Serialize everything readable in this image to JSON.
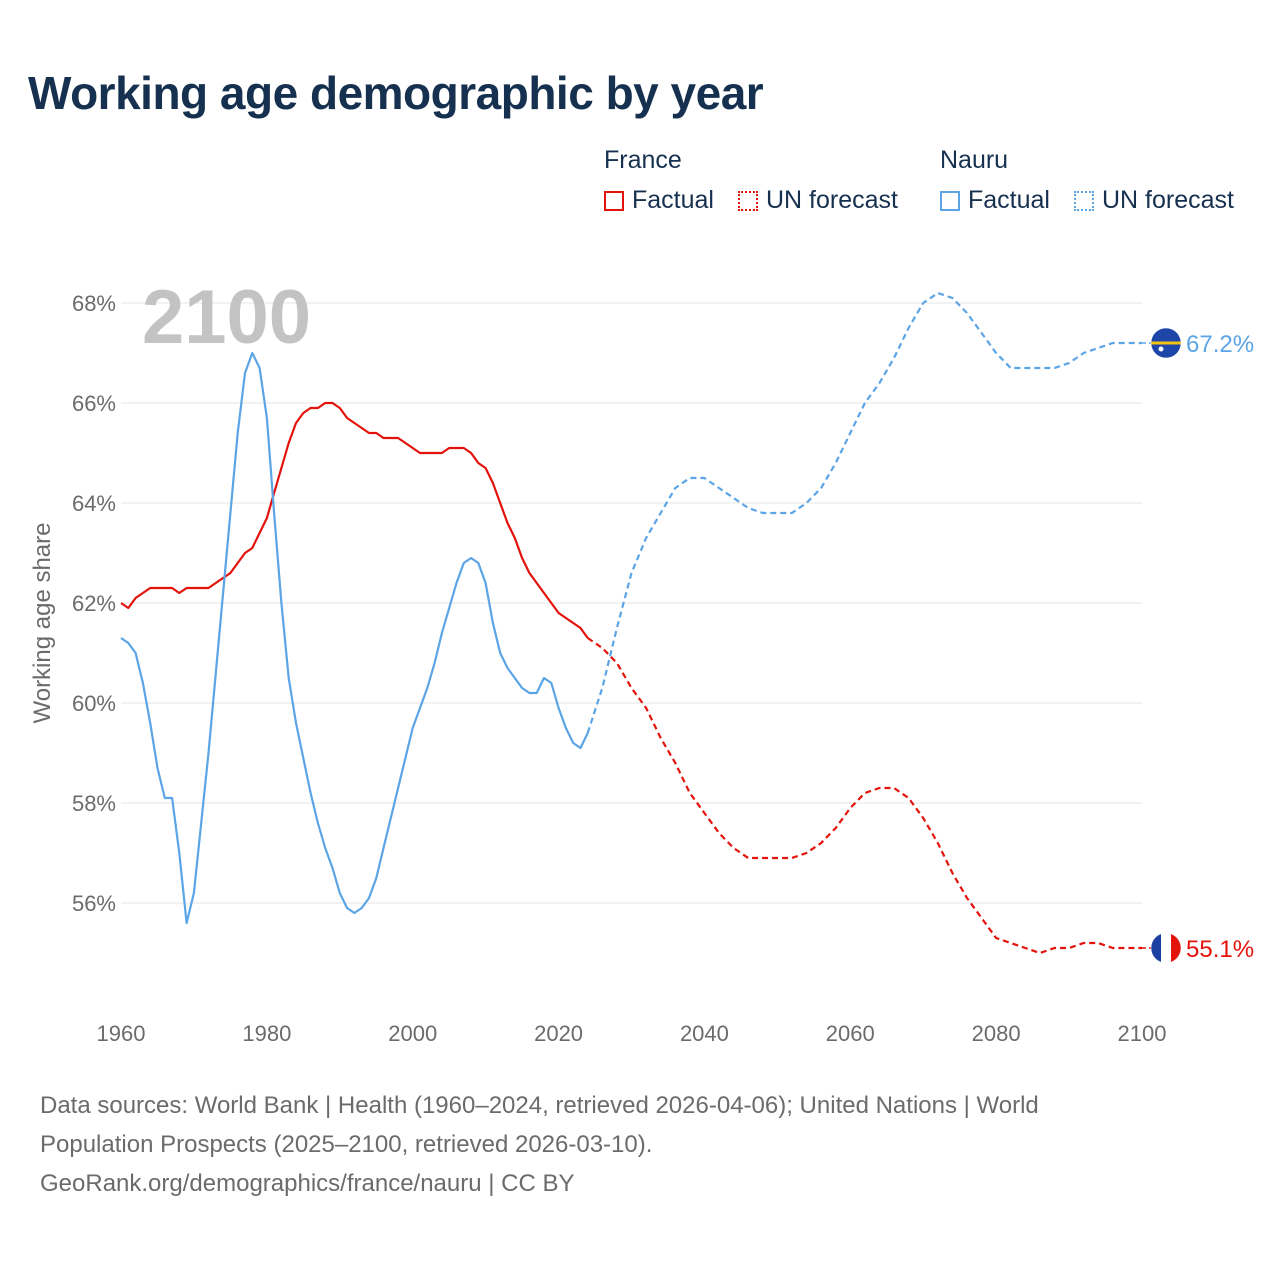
{
  "title": "Working age demographic by year",
  "legend": {
    "groups": [
      {
        "name": "France",
        "factual_label": "Factual",
        "forecast_label": "UN forecast",
        "color": "#e3120b"
      },
      {
        "name": "Nauru",
        "factual_label": "Factual",
        "forecast_label": "UN forecast",
        "color": "#5ba4e6"
      }
    ]
  },
  "footer": {
    "line1": "Data sources: World Bank | Health (1960–2024, retrieved 2026-04-06); United Nations | World",
    "line2": "Population Prospects (2025–2100, retrieved 2026-03-10).",
    "line3": "GeoRank.org/demographics/france/nauru | CC BY"
  },
  "chart_data": {
    "type": "line",
    "title": "Working age demographic by year",
    "ylabel": "Working age share",
    "xlabel": "",
    "year_display": "2100",
    "xlim": [
      1960,
      2100
    ],
    "ylim": [
      54,
      69
    ],
    "x_ticks": [
      1960,
      1980,
      2000,
      2020,
      2040,
      2060,
      2080,
      2100
    ],
    "y_ticks": [
      56,
      58,
      60,
      62,
      64,
      66,
      68
    ],
    "y_tick_labels": [
      "56%",
      "58%",
      "60%",
      "62%",
      "64%",
      "66%",
      "68%"
    ],
    "grid": true,
    "series": [
      {
        "name": "France",
        "color": "#e3120b",
        "end_label": "55.1%",
        "factual": {
          "x": [
            1960,
            1961,
            1962,
            1963,
            1964,
            1965,
            1966,
            1967,
            1968,
            1969,
            1970,
            1971,
            1972,
            1973,
            1974,
            1975,
            1976,
            1977,
            1978,
            1979,
            1980,
            1981,
            1982,
            1983,
            1984,
            1985,
            1986,
            1987,
            1988,
            1989,
            1990,
            1991,
            1992,
            1993,
            1994,
            1995,
            1996,
            1997,
            1998,
            1999,
            2000,
            2001,
            2002,
            2003,
            2004,
            2005,
            2006,
            2007,
            2008,
            2009,
            2010,
            2011,
            2012,
            2013,
            2014,
            2015,
            2016,
            2017,
            2018,
            2019,
            2020,
            2021,
            2022,
            2023,
            2024
          ],
          "y": [
            62.0,
            61.9,
            62.1,
            62.2,
            62.3,
            62.3,
            62.3,
            62.3,
            62.2,
            62.3,
            62.3,
            62.3,
            62.3,
            62.4,
            62.5,
            62.6,
            62.8,
            63.0,
            63.1,
            63.4,
            63.7,
            64.2,
            64.7,
            65.2,
            65.6,
            65.8,
            65.9,
            65.9,
            66.0,
            66.0,
            65.9,
            65.7,
            65.6,
            65.5,
            65.4,
            65.4,
            65.3,
            65.3,
            65.3,
            65.2,
            65.1,
            65.0,
            65.0,
            65.0,
            65.0,
            65.1,
            65.1,
            65.1,
            65.0,
            64.8,
            64.7,
            64.4,
            64.0,
            63.6,
            63.3,
            62.9,
            62.6,
            62.4,
            62.2,
            62.0,
            61.8,
            61.7,
            61.6,
            61.5,
            61.3
          ]
        },
        "forecast": {
          "x": [
            2024,
            2026,
            2028,
            2030,
            2032,
            2034,
            2036,
            2038,
            2040,
            2042,
            2044,
            2046,
            2048,
            2050,
            2052,
            2054,
            2056,
            2058,
            2060,
            2062,
            2064,
            2066,
            2068,
            2070,
            2072,
            2074,
            2076,
            2078,
            2080,
            2082,
            2084,
            2086,
            2088,
            2090,
            2092,
            2094,
            2096,
            2098,
            2100
          ],
          "y": [
            61.3,
            61.1,
            60.8,
            60.3,
            59.9,
            59.3,
            58.8,
            58.2,
            57.8,
            57.4,
            57.1,
            56.9,
            56.9,
            56.9,
            56.9,
            57.0,
            57.2,
            57.5,
            57.9,
            58.2,
            58.3,
            58.3,
            58.1,
            57.7,
            57.2,
            56.6,
            56.1,
            55.7,
            55.3,
            55.2,
            55.1,
            55.0,
            55.1,
            55.1,
            55.2,
            55.2,
            55.1,
            55.1,
            55.1
          ]
        }
      },
      {
        "name": "Nauru",
        "color": "#5ba4e6",
        "end_label": "67.2%",
        "factual": {
          "x": [
            1960,
            1961,
            1962,
            1963,
            1964,
            1965,
            1966,
            1967,
            1968,
            1969,
            1970,
            1971,
            1972,
            1973,
            1974,
            1975,
            1976,
            1977,
            1978,
            1979,
            1980,
            1981,
            1982,
            1983,
            1984,
            1985,
            1986,
            1987,
            1988,
            1989,
            1990,
            1991,
            1992,
            1993,
            1994,
            1995,
            1996,
            1997,
            1998,
            1999,
            2000,
            2001,
            2002,
            2003,
            2004,
            2005,
            2006,
            2007,
            2008,
            2009,
            2010,
            2011,
            2012,
            2013,
            2014,
            2015,
            2016,
            2017,
            2018,
            2019,
            2020,
            2021,
            2022,
            2023,
            2024
          ],
          "y": [
            61.3,
            61.2,
            61.0,
            60.4,
            59.6,
            58.7,
            58.1,
            58.1,
            57.0,
            55.6,
            56.2,
            57.6,
            59.0,
            60.6,
            62.2,
            63.8,
            65.4,
            66.6,
            67.0,
            66.7,
            65.7,
            63.8,
            62.0,
            60.5,
            59.6,
            58.9,
            58.2,
            57.6,
            57.1,
            56.7,
            56.2,
            55.9,
            55.8,
            55.9,
            56.1,
            56.5,
            57.1,
            57.7,
            58.3,
            58.9,
            59.5,
            59.9,
            60.3,
            60.8,
            61.4,
            61.9,
            62.4,
            62.8,
            62.9,
            62.8,
            62.4,
            61.6,
            61.0,
            60.7,
            60.5,
            60.3,
            60.2,
            60.2,
            60.5,
            60.4,
            59.9,
            59.5,
            59.2,
            59.1,
            59.4
          ]
        },
        "forecast": {
          "x": [
            2024,
            2026,
            2028,
            2030,
            2032,
            2034,
            2036,
            2038,
            2040,
            2042,
            2044,
            2046,
            2048,
            2050,
            2052,
            2054,
            2056,
            2058,
            2060,
            2062,
            2064,
            2066,
            2068,
            2070,
            2072,
            2074,
            2076,
            2078,
            2080,
            2082,
            2084,
            2086,
            2088,
            2090,
            2092,
            2094,
            2096,
            2098,
            2100
          ],
          "y": [
            59.4,
            60.3,
            61.5,
            62.6,
            63.3,
            63.8,
            64.3,
            64.5,
            64.5,
            64.3,
            64.1,
            63.9,
            63.8,
            63.8,
            63.8,
            64.0,
            64.3,
            64.8,
            65.4,
            66.0,
            66.4,
            66.9,
            67.5,
            68.0,
            68.2,
            68.1,
            67.8,
            67.4,
            67.0,
            66.7,
            66.7,
            66.7,
            66.7,
            66.8,
            67.0,
            67.1,
            67.2,
            67.2,
            67.2
          ]
        }
      }
    ]
  }
}
